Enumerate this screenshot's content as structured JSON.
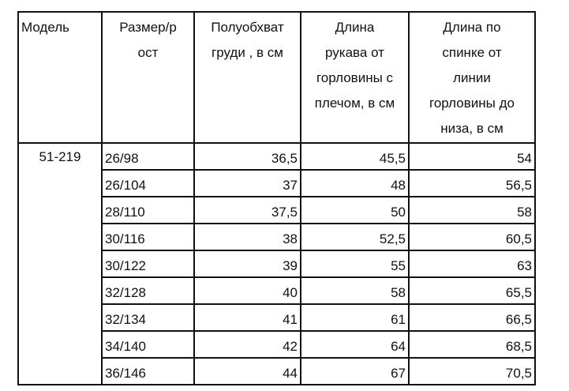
{
  "table": {
    "headers": [
      "Модель",
      "Размер/р\nост",
      "Полуобхват\nгруди , в см",
      "Длина\nрукава от\nгорловины  с\nплечом,  в см",
      "Длина по\nспинке от\nлинии\nгорловины до\nниза, в см"
    ],
    "model": "51-219",
    "rows": [
      [
        "26/98",
        "36,5",
        "45,5",
        "54"
      ],
      [
        "26/104",
        "37",
        "48",
        "56,5"
      ],
      [
        "28/110",
        "37,5",
        "50",
        "58"
      ],
      [
        "30/116",
        "38",
        "52,5",
        "60,5"
      ],
      [
        "30/122",
        "39",
        "55",
        "63"
      ],
      [
        "32/128",
        "40",
        "58",
        "65,5"
      ],
      [
        "32/134",
        "41",
        "61",
        "66,5"
      ],
      [
        "34/140",
        "42",
        "64",
        "68,5"
      ],
      [
        "36/146",
        "44",
        "67",
        "70,5"
      ]
    ]
  }
}
